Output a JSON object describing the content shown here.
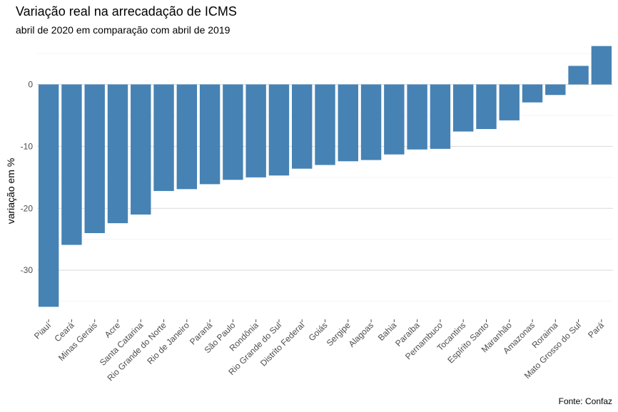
{
  "chart_data": {
    "type": "bar",
    "title": "Variação real na arrecadação de ICMS",
    "subtitle": "abril de 2020 em comparação com abril de 2019",
    "caption": "Fonte: Confaz",
    "xlabel": "",
    "ylabel": "variação em %",
    "ylim": [
      -37,
      6.5
    ],
    "yticks": [
      0,
      -10,
      -20,
      -30
    ],
    "grid": true,
    "bar_color": "#4682B4",
    "categories": [
      "Piauí",
      "Ceará",
      "Minas Gerais",
      "Acre",
      "Santa Catarina",
      "Rio Grande do Norte",
      "Rio de Janeiro",
      "Paraná",
      "São Paulo",
      "Rondônia",
      "Rio Grande do Sul",
      "Distrito Federal",
      "Goiás",
      "Sergipe",
      "Alagoas",
      "Bahia",
      "Paraíba",
      "Pernambuco",
      "Tocantins",
      "Espírito Santo",
      "Maranhão",
      "Amazonas",
      "Roraima",
      "Mato Grosso do Sul",
      "Pará"
    ],
    "values": [
      -35.9,
      -25.9,
      -24.0,
      -22.4,
      -21.0,
      -17.2,
      -16.9,
      -16.1,
      -15.4,
      -15.0,
      -14.7,
      -13.6,
      -13.0,
      -12.4,
      -12.2,
      -11.3,
      -10.5,
      -10.4,
      -7.6,
      -7.2,
      -5.8,
      -2.9,
      -1.7,
      3.0,
      6.2
    ]
  }
}
